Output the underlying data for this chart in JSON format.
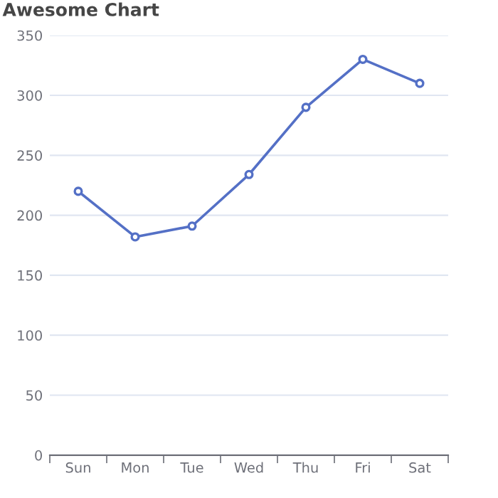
{
  "chart_data": {
    "type": "line",
    "title": "Awesome Chart",
    "categories": [
      "Sun",
      "Mon",
      "Tue",
      "Wed",
      "Thu",
      "Fri",
      "Sat"
    ],
    "series": [
      {
        "color": "#5470c6",
        "values": [
          220,
          182,
          191,
          234,
          290,
          330,
          310
        ]
      }
    ],
    "ylim": [
      0,
      350
    ],
    "yticks": [
      0,
      50,
      100,
      150,
      200,
      250,
      300,
      350
    ],
    "grid": "y",
    "marker": "circle",
    "line_style": "solid"
  }
}
